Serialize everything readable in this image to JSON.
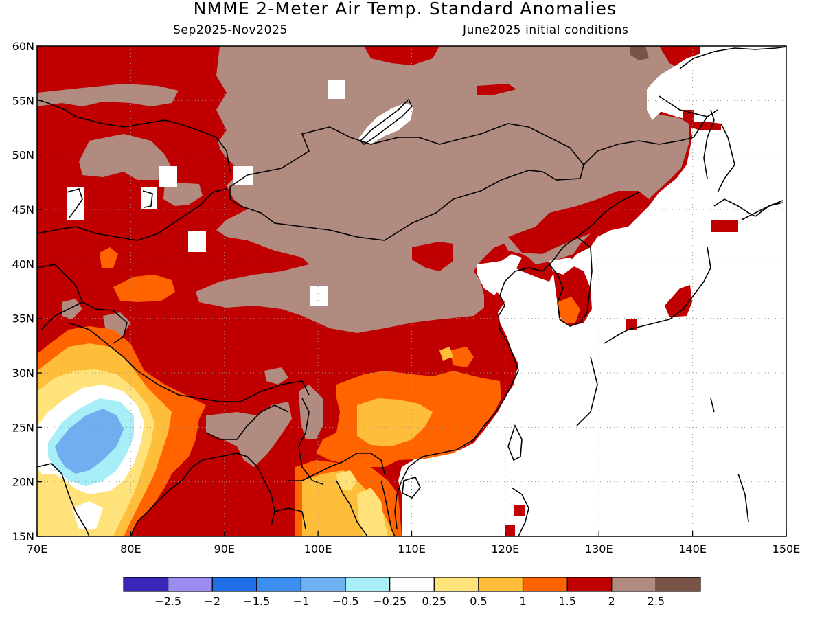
{
  "header": {
    "title": "NMME 2-Meter Air Temp. Standard Anomalies",
    "period": "Sep2025-Nov2025",
    "init": "June2025 initial conditions"
  },
  "map": {
    "lon_range": [
      70,
      150
    ],
    "lat_range": [
      15,
      60
    ],
    "lon_ticks": [
      "70E",
      "80E",
      "90E",
      "100E",
      "110E",
      "120E",
      "130E",
      "140E",
      "150E"
    ],
    "lat_ticks": [
      "15N",
      "20N",
      "25N",
      "30N",
      "35N",
      "40N",
      "45N",
      "50N",
      "55N",
      "60N"
    ],
    "colors": {
      "land_base": "#c00000",
      "brown": "#b18a80",
      "dark_brown": "#7a5347",
      "orange": "#ff6400",
      "light_orange": "#ffbe3a",
      "yellow": "#ffe27a",
      "white": "#ffffff",
      "cyan": "#a8eef8",
      "light_blue": "#70aef0",
      "blue": "#3f8ce6",
      "coast": "#000000",
      "grid": "#999999"
    }
  },
  "colorbar": {
    "colors": [
      "#3a26b8",
      "#9a8cf0",
      "#1e6ee6",
      "#3c8ef0",
      "#6eb0f0",
      "#a8eef8",
      "#ffffff",
      "#ffe27a",
      "#ffbe3a",
      "#ff6400",
      "#c00000",
      "#b18a80",
      "#7a5347"
    ],
    "labels": [
      "−2.5",
      "−2",
      "−1.5",
      "−1",
      "−0.5",
      "−0.25",
      "0.25",
      "0.5",
      "1",
      "1.5",
      "2",
      "2.5"
    ]
  }
}
